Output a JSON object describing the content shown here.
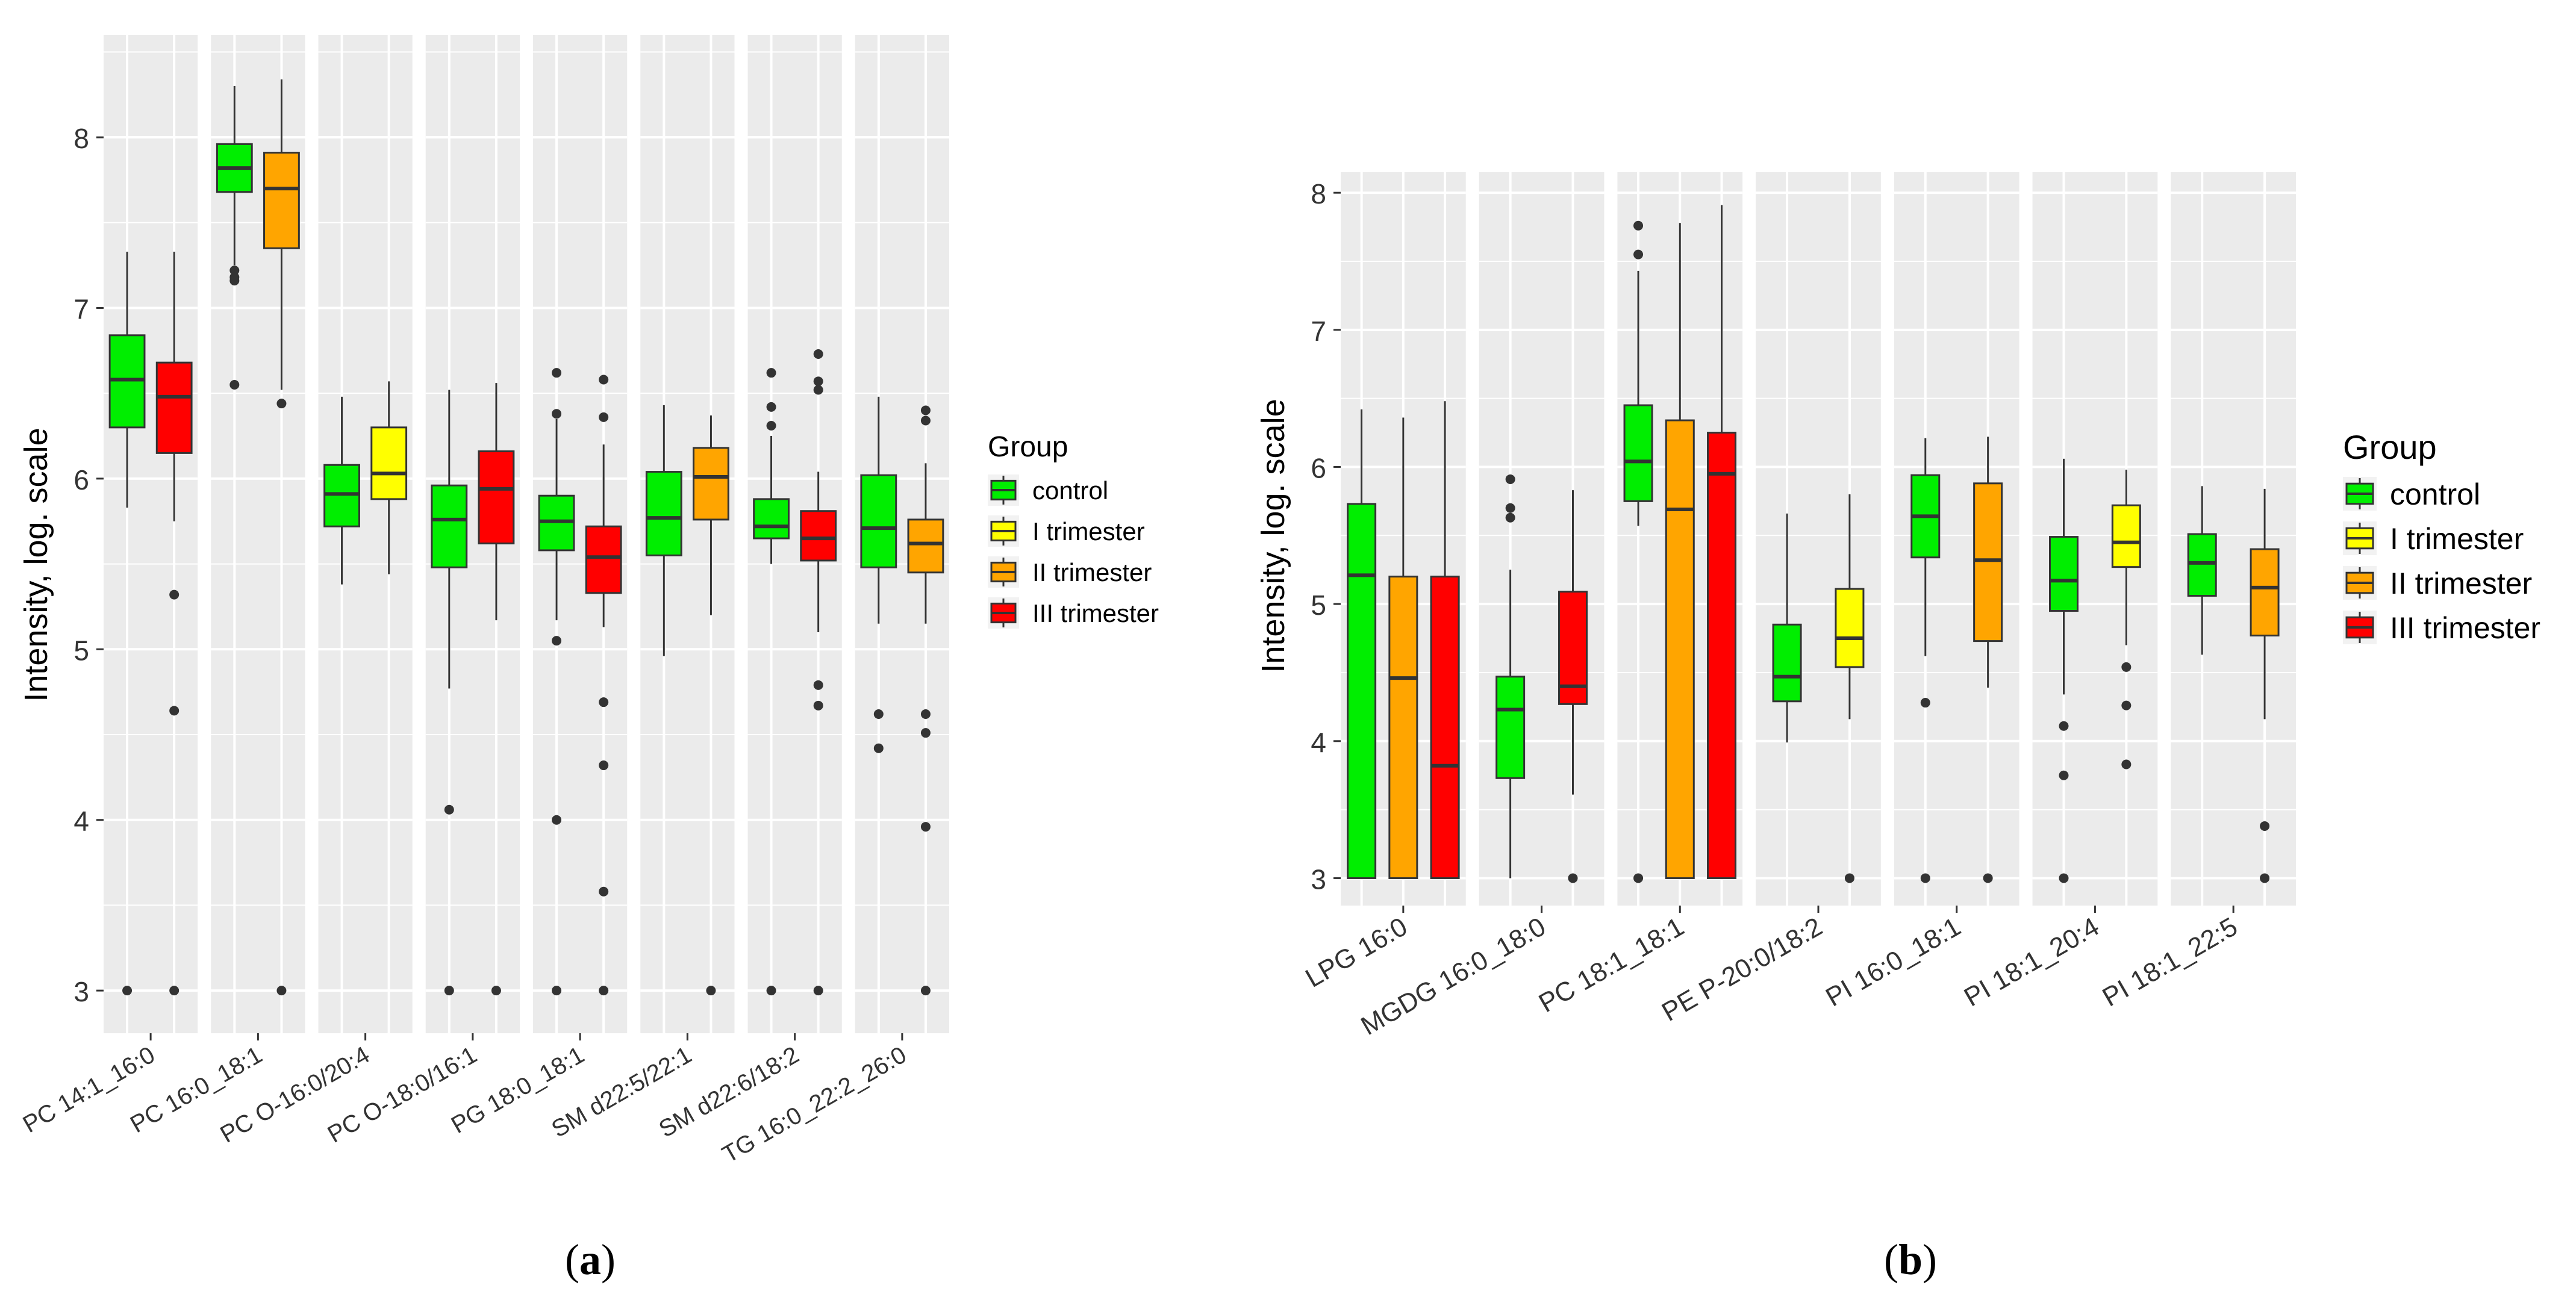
{
  "colors": {
    "control": "#00EE00",
    "I trimester": "#FFFF00",
    "II trimester": "#FFA500",
    "III trimester": "#FF0000",
    "panel_bg": "#EBEBEB",
    "grid": "#FFFFFF",
    "outlier": "#333333"
  },
  "legend_title": "Group",
  "groups": [
    "control",
    "I trimester",
    "II trimester",
    "III trimester"
  ],
  "panel_labels": {
    "a": "a",
    "b": "b"
  },
  "chart_data": [
    {
      "type": "box",
      "id": "a",
      "ylabel": "Intensity, log. scale",
      "xlabel": "",
      "yticks": [
        3,
        4,
        5,
        6,
        7,
        8
      ],
      "ylim": [
        2.75,
        8.6
      ],
      "grid": true,
      "legend_position": "right",
      "facets": [
        {
          "label": "PC 14:1_16:0",
          "boxes": [
            {
              "group": "control",
              "min": 5.83,
              "q1": 6.3,
              "median": 6.58,
              "q3": 6.84,
              "max": 7.33,
              "outliers": [
                3.0
              ]
            },
            {
              "group": "III trimester",
              "min": 5.75,
              "q1": 6.15,
              "median": 6.48,
              "q3": 6.68,
              "max": 7.33,
              "outliers": [
                5.32,
                4.64,
                3.0
              ]
            }
          ]
        },
        {
          "label": "PC 16:0_18:1",
          "boxes": [
            {
              "group": "control",
              "min": 7.25,
              "q1": 7.68,
              "median": 7.82,
              "q3": 7.96,
              "max": 8.3,
              "outliers": [
                7.22,
                7.18,
                7.16,
                6.55
              ]
            },
            {
              "group": "II trimester",
              "min": 6.52,
              "q1": 7.35,
              "median": 7.7,
              "q3": 7.91,
              "max": 8.34,
              "outliers": [
                6.44,
                3.0
              ]
            }
          ]
        },
        {
          "label": "PC O-16:0/20:4",
          "boxes": [
            {
              "group": "control",
              "min": 5.38,
              "q1": 5.72,
              "median": 5.91,
              "q3": 6.08,
              "max": 6.48,
              "outliers": []
            },
            {
              "group": "I trimester",
              "min": 5.44,
              "q1": 5.88,
              "median": 6.03,
              "q3": 6.3,
              "max": 6.57,
              "outliers": []
            }
          ]
        },
        {
          "label": "PC O-18:0/16:1",
          "boxes": [
            {
              "group": "control",
              "min": 4.77,
              "q1": 5.48,
              "median": 5.76,
              "q3": 5.96,
              "max": 6.52,
              "outliers": [
                4.06,
                3.0
              ]
            },
            {
              "group": "III trimester",
              "min": 5.17,
              "q1": 5.62,
              "median": 5.94,
              "q3": 6.16,
              "max": 6.56,
              "outliers": [
                3.0
              ]
            }
          ]
        },
        {
          "label": "PG 18:0_18:1",
          "boxes": [
            {
              "group": "control",
              "min": 5.17,
              "q1": 5.58,
              "median": 5.75,
              "q3": 5.9,
              "max": 6.35,
              "outliers": [
                6.62,
                6.38,
                5.05,
                4.0,
                3.0
              ]
            },
            {
              "group": "III trimester",
              "min": 5.13,
              "q1": 5.33,
              "median": 5.54,
              "q3": 5.72,
              "max": 6.2,
              "outliers": [
                6.58,
                6.36,
                4.69,
                4.32,
                3.58,
                3.0
              ]
            }
          ]
        },
        {
          "label": "SM d22:5/22:1",
          "boxes": [
            {
              "group": "control",
              "min": 4.96,
              "q1": 5.55,
              "median": 5.77,
              "q3": 6.04,
              "max": 6.43,
              "outliers": []
            },
            {
              "group": "II trimester",
              "min": 5.2,
              "q1": 5.76,
              "median": 6.01,
              "q3": 6.18,
              "max": 6.37,
              "outliers": [
                3.0
              ]
            }
          ]
        },
        {
          "label": "SM d22:6/18:2",
          "boxes": [
            {
              "group": "control",
              "min": 5.5,
              "q1": 5.65,
              "median": 5.72,
              "q3": 5.88,
              "max": 6.25,
              "outliers": [
                6.62,
                6.42,
                6.31,
                3.0
              ]
            },
            {
              "group": "III trimester",
              "min": 5.1,
              "q1": 5.52,
              "median": 5.65,
              "q3": 5.81,
              "max": 6.04,
              "outliers": [
                6.73,
                6.57,
                6.52,
                4.79,
                4.67,
                3.0
              ]
            }
          ]
        },
        {
          "label": "TG 16:0_22:2_26:0",
          "boxes": [
            {
              "group": "control",
              "min": 5.15,
              "q1": 5.48,
              "median": 5.71,
              "q3": 6.02,
              "max": 6.48,
              "outliers": [
                4.62,
                4.42
              ]
            },
            {
              "group": "II trimester",
              "min": 5.15,
              "q1": 5.45,
              "median": 5.62,
              "q3": 5.76,
              "max": 6.09,
              "outliers": [
                6.4,
                6.34,
                4.62,
                4.51,
                3.96,
                3.0
              ]
            }
          ]
        }
      ]
    },
    {
      "type": "box",
      "id": "b",
      "ylabel": "Intensity, log. scale",
      "xlabel": "",
      "yticks": [
        3,
        4,
        5,
        6,
        7,
        8
      ],
      "ylim": [
        2.8,
        8.15
      ],
      "grid": true,
      "legend_position": "right",
      "facets": [
        {
          "label": "LPG 16:0",
          "boxes": [
            {
              "group": "control",
              "min": 3.0,
              "q1": 3.0,
              "median": 5.21,
              "q3": 5.73,
              "max": 6.42,
              "outliers": []
            },
            {
              "group": "II trimester",
              "min": 3.0,
              "q1": 3.0,
              "median": 4.46,
              "q3": 5.2,
              "max": 6.36,
              "outliers": []
            },
            {
              "group": "III trimester",
              "min": 3.0,
              "q1": 3.0,
              "median": 3.82,
              "q3": 5.2,
              "max": 6.48,
              "outliers": []
            }
          ]
        },
        {
          "label": "MGDG 16:0_18:0",
          "boxes": [
            {
              "group": "control",
              "min": 3.0,
              "q1": 3.73,
              "median": 4.23,
              "q3": 4.47,
              "max": 5.25,
              "outliers": [
                5.91,
                5.7,
                5.63
              ]
            },
            {
              "group": "III trimester",
              "min": 3.61,
              "q1": 4.27,
              "median": 4.4,
              "q3": 5.09,
              "max": 5.83,
              "outliers": [
                3.0
              ]
            }
          ]
        },
        {
          "label": "PC 18:1_18:1",
          "boxes": [
            {
              "group": "control",
              "min": 5.57,
              "q1": 5.75,
              "median": 6.04,
              "q3": 6.45,
              "max": 7.43,
              "outliers": [
                7.76,
                7.55,
                3.0
              ]
            },
            {
              "group": "II trimester",
              "min": 3.0,
              "q1": 3.0,
              "median": 5.69,
              "q3": 6.34,
              "max": 7.78,
              "outliers": []
            },
            {
              "group": "III trimester",
              "min": 3.0,
              "q1": 3.0,
              "median": 5.95,
              "q3": 6.25,
              "max": 7.91,
              "outliers": []
            }
          ]
        },
        {
          "label": "PE P-20:0/18:2",
          "boxes": [
            {
              "group": "control",
              "min": 3.99,
              "q1": 4.29,
              "median": 4.47,
              "q3": 4.85,
              "max": 5.66,
              "outliers": []
            },
            {
              "group": "I trimester",
              "min": 4.16,
              "q1": 4.54,
              "median": 4.75,
              "q3": 5.11,
              "max": 5.8,
              "outliers": [
                3.0
              ]
            }
          ]
        },
        {
          "label": "PI 16:0_18:1",
          "boxes": [
            {
              "group": "control",
              "min": 4.62,
              "q1": 5.34,
              "median": 5.64,
              "q3": 5.94,
              "max": 6.21,
              "outliers": [
                4.28,
                3.0
              ]
            },
            {
              "group": "II trimester",
              "min": 4.39,
              "q1": 4.73,
              "median": 5.32,
              "q3": 5.88,
              "max": 6.22,
              "outliers": [
                3.0
              ]
            }
          ]
        },
        {
          "label": "PI 18:1_20:4",
          "boxes": [
            {
              "group": "control",
              "min": 4.34,
              "q1": 4.95,
              "median": 5.17,
              "q3": 5.49,
              "max": 6.06,
              "outliers": [
                4.11,
                3.75,
                3.0
              ]
            },
            {
              "group": "I trimester",
              "min": 4.7,
              "q1": 5.27,
              "median": 5.45,
              "q3": 5.72,
              "max": 5.98,
              "outliers": [
                4.54,
                4.26,
                3.83
              ]
            }
          ]
        },
        {
          "label": "PI 18:1_22:5",
          "boxes": [
            {
              "group": "control",
              "min": 4.63,
              "q1": 5.06,
              "median": 5.3,
              "q3": 5.51,
              "max": 5.86,
              "outliers": []
            },
            {
              "group": "II trimester",
              "min": 4.16,
              "q1": 4.77,
              "median": 5.12,
              "q3": 5.4,
              "max": 5.84,
              "outliers": [
                3.38,
                3.0
              ]
            }
          ]
        }
      ]
    }
  ]
}
